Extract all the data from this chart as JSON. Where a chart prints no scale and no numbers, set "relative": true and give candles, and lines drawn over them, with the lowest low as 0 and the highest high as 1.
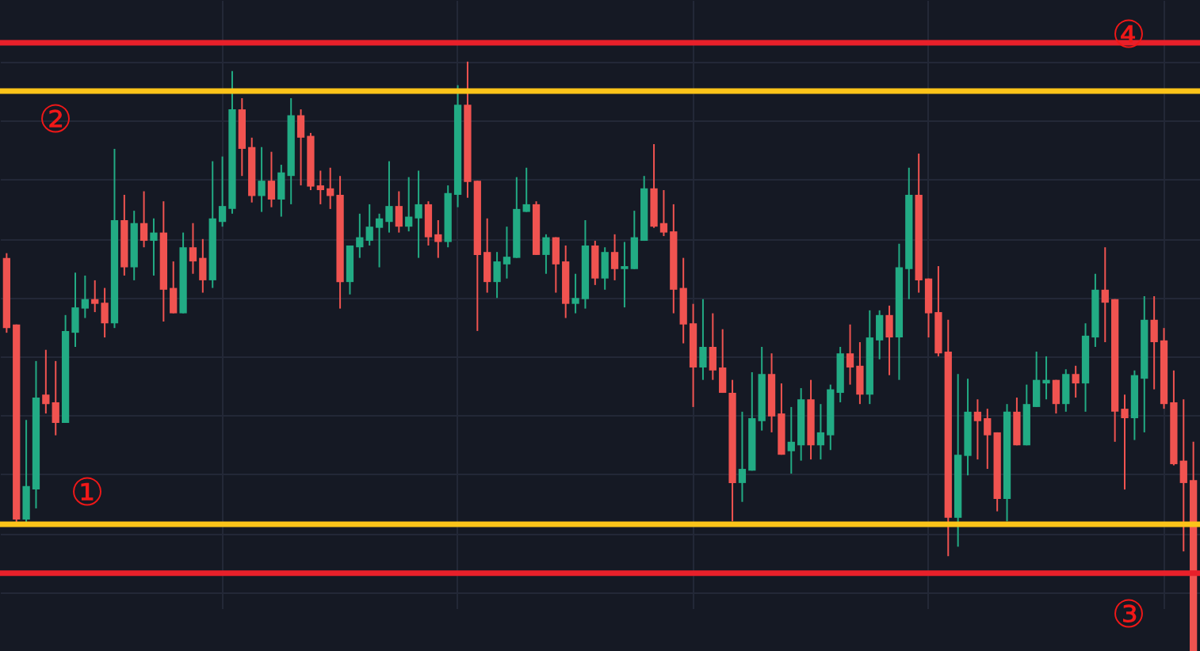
{
  "chart_data": {
    "type": "candlestick",
    "relative": true,
    "grid": true,
    "categories": [
      null,
      null,
      null,
      null,
      null,
      null,
      null,
      null,
      null,
      null,
      null,
      null,
      null,
      null,
      null,
      null,
      null,
      null,
      null,
      null,
      null,
      null,
      null,
      null,
      null,
      null,
      null,
      null,
      null,
      null,
      null,
      null,
      null,
      null,
      null,
      null,
      null,
      null,
      null,
      null,
      null,
      null,
      null,
      null,
      null,
      null,
      null,
      null,
      null,
      null,
      null,
      null,
      null,
      null,
      null,
      null,
      null,
      null,
      null,
      null,
      null,
      null,
      null,
      null,
      null,
      null,
      null,
      null,
      null,
      null,
      null,
      null,
      null,
      null,
      null,
      null,
      null,
      null,
      null,
      null,
      null,
      null,
      null,
      null,
      null,
      null,
      null,
      null,
      null,
      null,
      null,
      null,
      null,
      null,
      null,
      null,
      null,
      null,
      null,
      null,
      null,
      null,
      null,
      null,
      null,
      null,
      null,
      null,
      null,
      null,
      null,
      null,
      null,
      null,
      null,
      null,
      null,
      null,
      null,
      null,
      null,
      null
    ],
    "ohlc": [
      [
        0.667,
        0.675,
        0.54,
        0.548
      ],
      [
        0.554,
        0.554,
        0.218,
        0.223
      ],
      [
        0.223,
        0.392,
        0.218,
        0.28
      ],
      [
        0.274,
        0.492,
        0.242,
        0.43
      ],
      [
        0.435,
        0.511,
        0.403,
        0.419
      ],
      [
        0.422,
        0.492,
        0.366,
        0.387
      ],
      [
        0.387,
        0.57,
        0.387,
        0.543
      ],
      [
        0.54,
        0.642,
        0.516,
        0.583
      ],
      [
        0.581,
        0.637,
        0.565,
        0.597
      ],
      [
        0.597,
        0.629,
        0.575,
        0.589
      ],
      [
        0.591,
        0.616,
        0.532,
        0.556
      ],
      [
        0.556,
        0.852,
        0.548,
        0.731
      ],
      [
        0.731,
        0.774,
        0.637,
        0.651
      ],
      [
        0.651,
        0.747,
        0.629,
        0.726
      ],
      [
        0.726,
        0.78,
        0.685,
        0.696
      ],
      [
        0.696,
        0.734,
        0.637,
        0.71
      ],
      [
        0.71,
        0.763,
        0.559,
        0.613
      ],
      [
        0.616,
        0.661,
        0.573,
        0.573
      ],
      [
        0.573,
        0.71,
        0.573,
        0.685
      ],
      [
        0.685,
        0.726,
        0.64,
        0.661
      ],
      [
        0.667,
        0.699,
        0.608,
        0.629
      ],
      [
        0.629,
        0.831,
        0.616,
        0.734
      ],
      [
        0.728,
        0.839,
        0.72,
        0.755
      ],
      [
        0.75,
        0.984,
        0.742,
        0.919
      ],
      [
        0.919,
        0.938,
        0.806,
        0.852
      ],
      [
        0.855,
        0.871,
        0.761,
        0.772
      ],
      [
        0.772,
        0.855,
        0.745,
        0.798
      ],
      [
        0.798,
        0.847,
        0.753,
        0.766
      ],
      [
        0.766,
        0.825,
        0.737,
        0.812
      ],
      [
        0.806,
        0.938,
        0.758,
        0.909
      ],
      [
        0.909,
        0.919,
        0.79,
        0.871
      ],
      [
        0.874,
        0.879,
        0.782,
        0.788
      ],
      [
        0.79,
        0.815,
        0.758,
        0.782
      ],
      [
        0.785,
        0.82,
        0.75,
        0.772
      ],
      [
        0.774,
        0.806,
        0.581,
        0.626
      ],
      [
        0.626,
        0.688,
        0.605,
        0.688
      ],
      [
        0.685,
        0.742,
        0.667,
        0.702
      ],
      [
        0.696,
        0.758,
        0.688,
        0.72
      ],
      [
        0.718,
        0.742,
        0.651,
        0.734
      ],
      [
        0.728,
        0.831,
        0.71,
        0.755
      ],
      [
        0.755,
        0.78,
        0.71,
        0.72
      ],
      [
        0.72,
        0.804,
        0.712,
        0.737
      ],
      [
        0.734,
        0.815,
        0.667,
        0.758
      ],
      [
        0.758,
        0.763,
        0.688,
        0.702
      ],
      [
        0.707,
        0.731,
        0.667,
        0.694
      ],
      [
        0.694,
        0.79,
        0.685,
        0.777
      ],
      [
        0.774,
        0.96,
        0.753,
        0.927
      ],
      [
        0.927,
        1.0,
        0.769,
        0.796
      ],
      [
        0.798,
        0.798,
        0.543,
        0.672
      ],
      [
        0.677,
        0.734,
        0.608,
        0.626
      ],
      [
        0.626,
        0.677,
        0.599,
        0.661
      ],
      [
        0.656,
        0.72,
        0.632,
        0.669
      ],
      [
        0.667,
        0.804,
        0.667,
        0.75
      ],
      [
        0.745,
        0.82,
        0.745,
        0.758
      ],
      [
        0.758,
        0.763,
        0.672,
        0.672
      ],
      [
        0.672,
        0.707,
        0.64,
        0.702
      ],
      [
        0.702,
        0.702,
        0.608,
        0.656
      ],
      [
        0.661,
        0.688,
        0.565,
        0.589
      ],
      [
        0.589,
        0.64,
        0.573,
        0.599
      ],
      [
        0.597,
        0.731,
        0.581,
        0.688
      ],
      [
        0.688,
        0.696,
        0.621,
        0.632
      ],
      [
        0.632,
        0.685,
        0.613,
        0.677
      ],
      [
        0.677,
        0.707,
        0.629,
        0.648
      ],
      [
        0.648,
        0.694,
        0.583,
        0.653
      ],
      [
        0.648,
        0.747,
        0.648,
        0.702
      ],
      [
        0.696,
        0.806,
        0.696,
        0.785
      ],
      [
        0.785,
        0.86,
        0.718,
        0.72
      ],
      [
        0.726,
        0.782,
        0.704,
        0.71
      ],
      [
        0.712,
        0.758,
        0.573,
        0.613
      ],
      [
        0.616,
        0.667,
        0.522,
        0.554
      ],
      [
        0.556,
        0.589,
        0.414,
        0.481
      ],
      [
        0.481,
        0.597,
        0.46,
        0.516
      ],
      [
        0.516,
        0.573,
        0.46,
        0.476
      ],
      [
        0.481,
        0.546,
        0.438,
        0.438
      ],
      [
        0.438,
        0.46,
        0.22,
        0.285
      ],
      [
        0.285,
        0.406,
        0.253,
        0.309
      ],
      [
        0.306,
        0.473,
        0.306,
        0.395
      ],
      [
        0.39,
        0.516,
        0.374,
        0.47
      ],
      [
        0.47,
        0.505,
        0.371,
        0.398
      ],
      [
        0.403,
        0.454,
        0.333,
        0.333
      ],
      [
        0.339,
        0.414,
        0.301,
        0.355
      ],
      [
        0.349,
        0.446,
        0.323,
        0.427
      ],
      [
        0.427,
        0.46,
        0.325,
        0.349
      ],
      [
        0.349,
        0.419,
        0.325,
        0.371
      ],
      [
        0.366,
        0.452,
        0.341,
        0.444
      ],
      [
        0.438,
        0.516,
        0.422,
        0.505
      ],
      [
        0.505,
        0.554,
        0.452,
        0.481
      ],
      [
        0.484,
        0.524,
        0.419,
        0.435
      ],
      [
        0.435,
        0.578,
        0.419,
        0.532
      ],
      [
        0.527,
        0.578,
        0.495,
        0.57
      ],
      [
        0.57,
        0.586,
        0.468,
        0.532
      ],
      [
        0.532,
        0.691,
        0.46,
        0.651
      ],
      [
        0.648,
        0.82,
        0.597,
        0.774
      ],
      [
        0.774,
        0.844,
        0.608,
        0.629
      ],
      [
        0.632,
        0.632,
        0.532,
        0.573
      ],
      [
        0.575,
        0.653,
        0.5,
        0.505
      ],
      [
        0.508,
        0.562,
        0.161,
        0.226
      ],
      [
        0.226,
        0.47,
        0.177,
        0.333
      ],
      [
        0.331,
        0.462,
        0.298,
        0.406
      ],
      [
        0.406,
        0.427,
        0.325,
        0.39
      ],
      [
        0.395,
        0.411,
        0.309,
        0.366
      ],
      [
        0.371,
        0.371,
        0.237,
        0.258
      ],
      [
        0.258,
        0.419,
        0.22,
        0.406
      ],
      [
        0.406,
        0.43,
        0.349,
        0.349
      ],
      [
        0.349,
        0.452,
        0.349,
        0.419
      ],
      [
        0.414,
        0.508,
        0.414,
        0.46
      ],
      [
        0.454,
        0.5,
        0.427,
        0.46
      ],
      [
        0.46,
        0.46,
        0.403,
        0.419
      ],
      [
        0.419,
        0.478,
        0.406,
        0.47
      ],
      [
        0.47,
        0.484,
        0.43,
        0.454
      ],
      [
        0.454,
        0.556,
        0.406,
        0.535
      ],
      [
        0.532,
        0.64,
        0.516,
        0.613
      ],
      [
        0.613,
        0.685,
        0.524,
        0.591
      ],
      [
        0.597,
        0.597,
        0.355,
        0.406
      ],
      [
        0.411,
        0.435,
        0.274,
        0.395
      ],
      [
        0.395,
        0.476,
        0.358,
        0.468
      ],
      [
        0.462,
        0.602,
        0.371,
        0.562
      ],
      [
        0.562,
        0.602,
        0.444,
        0.524
      ],
      [
        0.527,
        0.548,
        0.411,
        0.419
      ],
      [
        0.422,
        0.476,
        0.315,
        0.317
      ],
      [
        0.323,
        0.427,
        0.169,
        0.285
      ],
      [
        0.29,
        0.355,
        0.0,
        0.0
      ]
    ],
    "colors": [
      "#f05350",
      "#f05350",
      "#22ab84",
      "#22ab84",
      "#f05350",
      "#f05350",
      "#22ab84",
      "#22ab84",
      "#22ab84",
      "#f05350",
      "#f05350",
      "#22ab84",
      "#f05350",
      "#22ab84",
      "#f05350",
      "#22ab84",
      "#f05350",
      "#f05350",
      "#22ab84",
      "#f05350",
      "#f05350",
      "#22ab84",
      "#22ab84",
      "#22ab84",
      "#f05350",
      "#f05350",
      "#22ab84",
      "#f05350",
      "#22ab84",
      "#22ab84",
      "#f05350",
      "#f05350",
      "#f05350",
      "#f05350",
      "#f05350",
      "#22ab84",
      "#22ab84",
      "#22ab84",
      "#22ab84",
      "#22ab84",
      "#f05350",
      "#22ab84",
      "#22ab84",
      "#f05350",
      "#f05350",
      "#22ab84",
      "#22ab84",
      "#f05350",
      "#f05350",
      "#f05350",
      "#22ab84",
      "#22ab84",
      "#22ab84",
      "#22ab84",
      "#f05350",
      "#22ab84",
      "#f05350",
      "#f05350",
      "#22ab84",
      "#22ab84",
      "#f05350",
      "#22ab84",
      "#f05350",
      "#22ab84",
      "#22ab84",
      "#22ab84",
      "#f05350",
      "#f05350",
      "#f05350",
      "#f05350",
      "#f05350",
      "#22ab84",
      "#f05350",
      "#f05350",
      "#f05350",
      "#22ab84",
      "#22ab84",
      "#22ab84",
      "#f05350",
      "#f05350",
      "#22ab84",
      "#22ab84",
      "#f05350",
      "#22ab84",
      "#22ab84",
      "#22ab84",
      "#f05350",
      "#f05350",
      "#22ab84",
      "#22ab84",
      "#f05350",
      "#22ab84",
      "#22ab84",
      "#f05350",
      "#f05350",
      "#f05350",
      "#f05350",
      "#22ab84",
      "#22ab84",
      "#f05350",
      "#f05350",
      "#f05350",
      "#22ab84",
      "#f05350",
      "#22ab84",
      "#22ab84",
      "#22ab84",
      "#f05350",
      "#22ab84",
      "#f05350",
      "#22ab84",
      "#22ab84",
      "#f05350",
      "#f05350",
      "#f05350",
      "#22ab84",
      "#22ab84",
      "#f05350",
      "#f05350",
      "#f05350",
      "#f05350",
      "#f05350"
    ],
    "ref_lines": [
      {
        "axis": "y",
        "value": 1.032,
        "label": "④",
        "color": "#e8202a"
      },
      {
        "axis": "y",
        "value": 0.95,
        "label": "②",
        "color": "#fcc419"
      },
      {
        "axis": "y",
        "value": 0.215,
        "label": "①",
        "color": "#fcc419"
      },
      {
        "axis": "y",
        "value": 0.132,
        "label": "③",
        "color": "#e8202a"
      }
    ]
  }
}
